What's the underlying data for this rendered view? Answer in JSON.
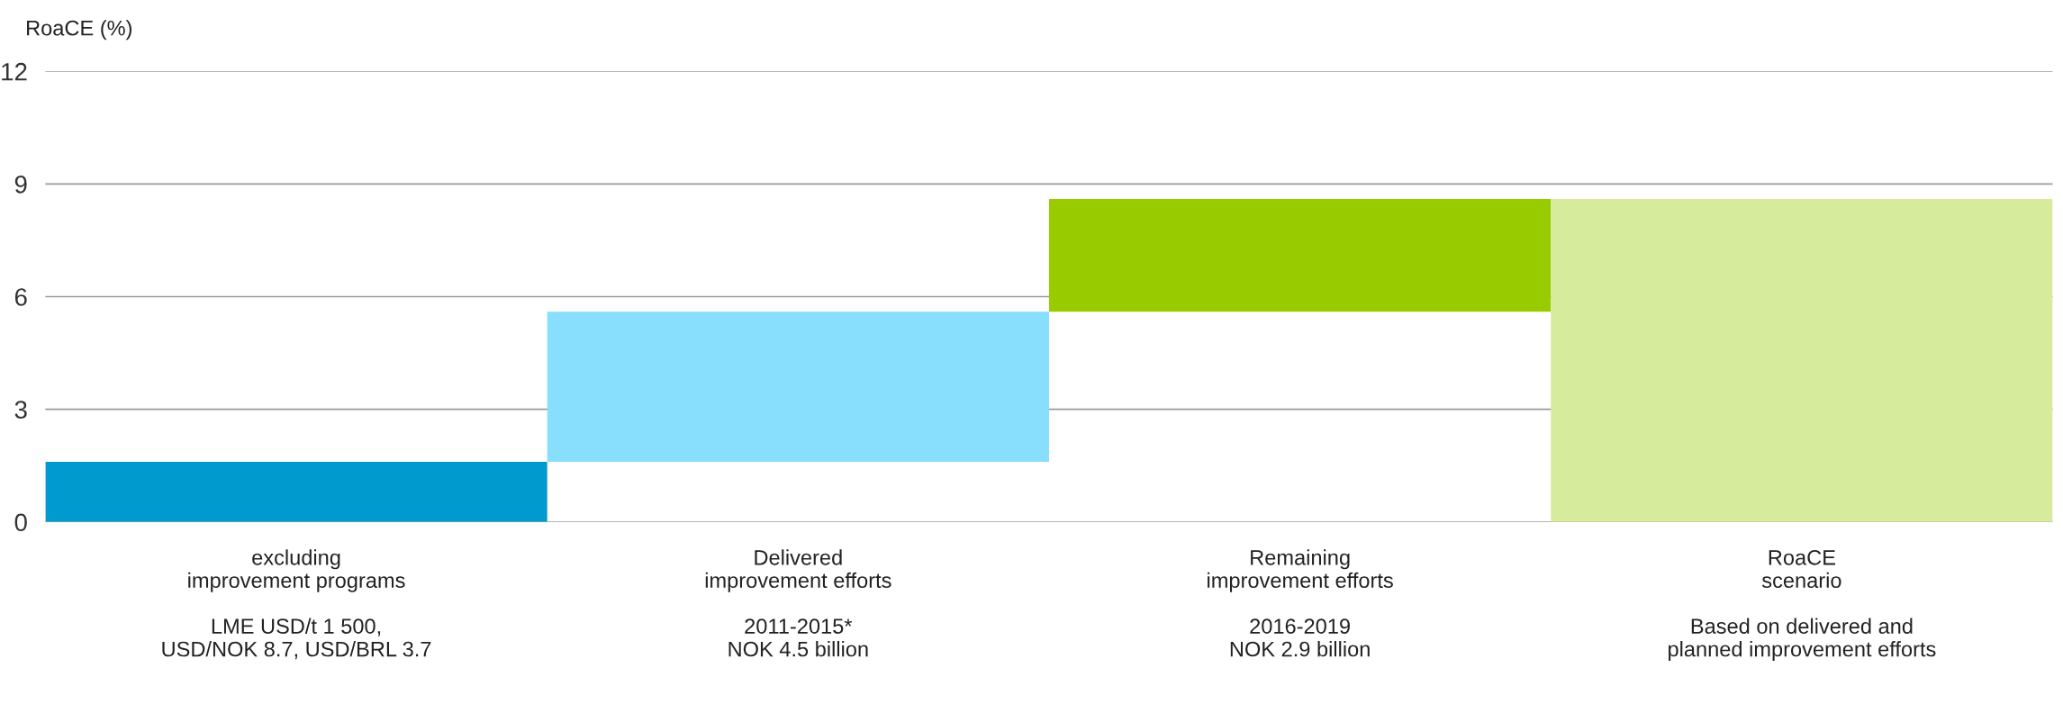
{
  "chart_data": {
    "type": "bar",
    "ylabel": "RoaCE (%)",
    "categories": [
      "excluding\nimprovement programs\n\nLME USD/t 1 500,\nUSD/NOK 8.7, USD/BRL 3.7",
      "Delivered\nimprovement efforts\n\n2011-2015*\nNOK 4.5 billion",
      "Remaining\nimprovement efforts\n\n2016-2019\nNOK 2.9 billion",
      "RoaCE\nscenario\n\nBased on delivered and\nplanned improvement efforts"
    ],
    "values": [
      1.6,
      4.0,
      3.0,
      8.6
    ],
    "base": [
      0,
      1.6,
      5.6,
      0
    ],
    "colors": [
      "#009ace",
      "#87dffd",
      "#99cc00",
      "#d6eb9b"
    ],
    "ylim": [
      0,
      12
    ],
    "yticks": [
      0,
      3,
      6,
      9,
      12
    ],
    "grid": "y",
    "legend": false
  }
}
